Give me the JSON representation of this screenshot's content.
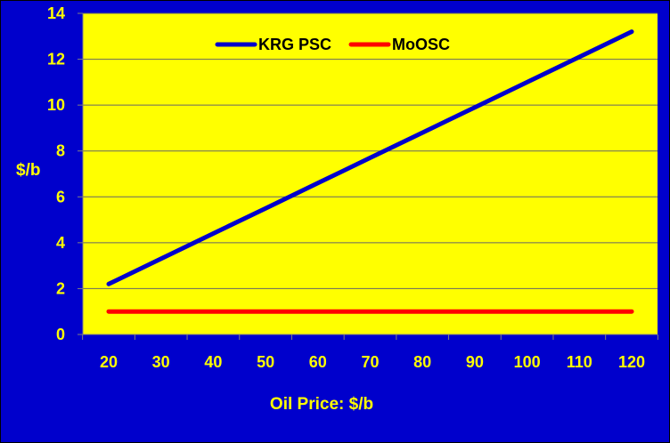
{
  "colors": {
    "background": "#0000CC",
    "plot_area": "#FFFF00",
    "text": "#FFFF00",
    "gridline": "#666666",
    "axis": "#808080"
  },
  "chart_data": {
    "type": "line",
    "title": "",
    "xlabel": "Oil Price: $/b",
    "ylabel": "$/b",
    "x": [
      20,
      30,
      40,
      50,
      60,
      70,
      80,
      90,
      100,
      110,
      120
    ],
    "ylim": [
      0,
      14
    ],
    "yticks": [
      0,
      2,
      4,
      6,
      8,
      10,
      12,
      14
    ],
    "grid": true,
    "legend_position": "top",
    "series": [
      {
        "name": "KRG PSC",
        "color": "#0000CC",
        "values": [
          2.2,
          3.3,
          4.4,
          5.5,
          6.6,
          7.7,
          8.8,
          9.9,
          11.0,
          12.1,
          13.2
        ]
      },
      {
        "name": "MoOSC",
        "color": "#FF0000",
        "values": [
          1,
          1,
          1,
          1,
          1,
          1,
          1,
          1,
          1,
          1,
          1
        ]
      }
    ]
  }
}
